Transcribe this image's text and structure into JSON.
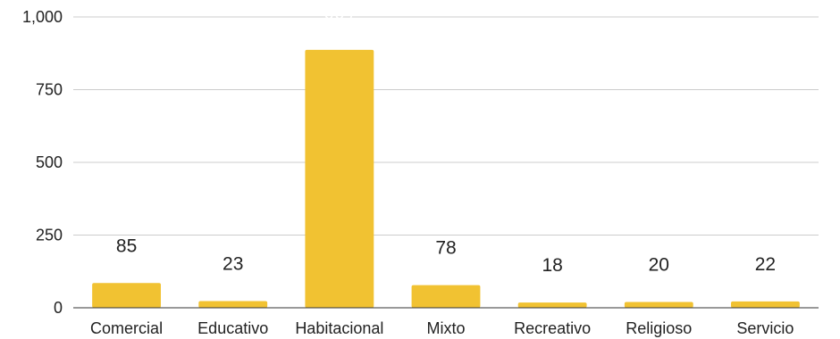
{
  "chart_data": {
    "type": "bar",
    "categories": [
      "Comercial",
      "Educativo",
      "Habitacional",
      "Mixto",
      "Recreativo",
      "Religioso",
      "Servicio"
    ],
    "values": [
      85,
      23,
      887,
      78,
      18,
      20,
      22
    ],
    "value_labels": [
      "85",
      "23",
      "887",
      "78",
      "18",
      "20",
      "22"
    ],
    "title": "",
    "xlabel": "",
    "ylabel": "",
    "ylim": [
      0,
      1000
    ],
    "yticks": [
      0,
      250,
      500,
      750,
      1000
    ],
    "ytick_labels": [
      "0",
      "250",
      "500",
      "750",
      "1,000"
    ],
    "grid": true,
    "legend": "none",
    "bar_color": "#F1C232",
    "grid_color": "#CCCCCC",
    "axis_color": "#333333"
  }
}
